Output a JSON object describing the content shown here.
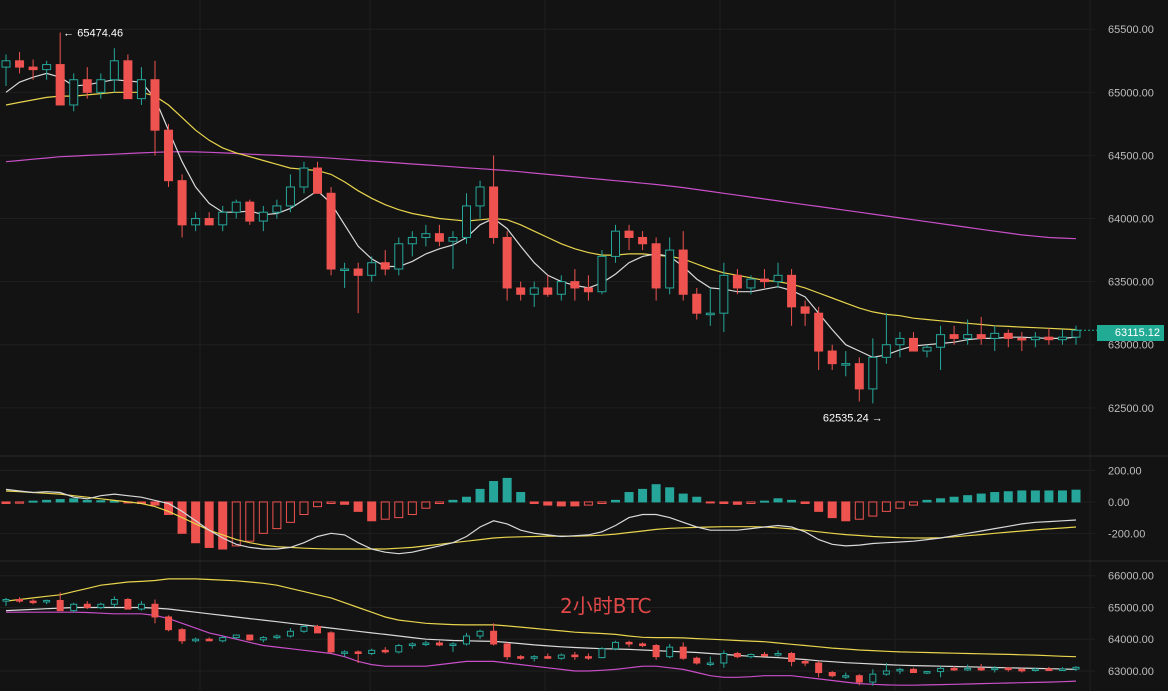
{
  "chart_data": [
    {
      "type": "candlestick",
      "title": "",
      "axis_ticks": [
        "65500.00",
        "65000.00",
        "64500.00",
        "64000.00",
        "63500.00",
        "63000.00",
        "62500.00"
      ],
      "ylim": [
        62150,
        65700
      ],
      "last_price": "63115.12",
      "annotations": {
        "high": "65474.46",
        "low": "62535.24"
      },
      "colors": {
        "up": "#26a69a",
        "down": "#ef5350",
        "ma_fast": "#d9d9d9",
        "ma_mid": "#e8d44d",
        "ma_slow": "#c84fc8",
        "tag": "#22ab94"
      },
      "candles": [
        [
          65200,
          65300,
          65050,
          65250
        ],
        [
          65250,
          65320,
          65150,
          65200
        ],
        [
          65200,
          65260,
          65100,
          65180
        ],
        [
          65180,
          65250,
          65100,
          65220
        ],
        [
          65220,
          65474,
          64900,
          64900
        ],
        [
          64900,
          65150,
          64850,
          65100
        ],
        [
          65100,
          65200,
          64950,
          65000
        ],
        [
          65000,
          65150,
          64950,
          65100
        ],
        [
          65100,
          65350,
          65000,
          65250
        ],
        [
          65250,
          65300,
          64950,
          64950
        ],
        [
          64950,
          65200,
          64900,
          65100
        ],
        [
          65100,
          65250,
          64500,
          64700
        ],
        [
          64700,
          64750,
          64250,
          64300
        ],
        [
          64300,
          64350,
          63850,
          63950
        ],
        [
          63950,
          64050,
          63900,
          64000
        ],
        [
          64000,
          64050,
          63950,
          63950
        ],
        [
          63950,
          64100,
          63900,
          64050
        ],
        [
          64050,
          64150,
          64000,
          64130
        ],
        [
          64130,
          64150,
          63950,
          63980
        ],
        [
          63980,
          64100,
          63900,
          64050
        ],
        [
          64050,
          64150,
          64000,
          64100
        ],
        [
          64100,
          64350,
          64050,
          64250
        ],
        [
          64250,
          64450,
          64200,
          64400
        ],
        [
          64400,
          64450,
          64200,
          64200
        ],
        [
          64200,
          64250,
          63550,
          63600
        ],
        [
          63600,
          63650,
          63450,
          63600
        ],
        [
          63600,
          63650,
          63250,
          63550
        ],
        [
          63550,
          63700,
          63500,
          63650
        ],
        [
          63650,
          63750,
          63550,
          63600
        ],
        [
          63600,
          63850,
          63550,
          63800
        ],
        [
          63800,
          63900,
          63700,
          63850
        ],
        [
          63850,
          63950,
          63780,
          63880
        ],
        [
          63880,
          63950,
          63780,
          63820
        ],
        [
          63820,
          63900,
          63600,
          63850
        ],
        [
          63850,
          64200,
          63800,
          64100
        ],
        [
          64100,
          64300,
          64000,
          64250
        ],
        [
          64250,
          64500,
          63800,
          63850
        ],
        [
          63850,
          63900,
          63350,
          63450
        ],
        [
          63450,
          63500,
          63350,
          63400
        ],
        [
          63400,
          63500,
          63300,
          63450
        ],
        [
          63450,
          63550,
          63380,
          63400
        ],
        [
          63400,
          63550,
          63350,
          63500
        ],
        [
          63500,
          63600,
          63350,
          63450
        ],
        [
          63450,
          63550,
          63350,
          63420
        ],
        [
          63420,
          63750,
          63400,
          63700
        ],
        [
          63700,
          63950,
          63650,
          63900
        ],
        [
          63900,
          63950,
          63750,
          63850
        ],
        [
          63850,
          63900,
          63750,
          63800
        ],
        [
          63800,
          63850,
          63350,
          63450
        ],
        [
          63450,
          63850,
          63400,
          63750
        ],
        [
          63750,
          63900,
          63350,
          63400
        ],
        [
          63400,
          63450,
          63200,
          63250
        ],
        [
          63250,
          63450,
          63150,
          63250
        ],
        [
          63250,
          63650,
          63100,
          63550
        ],
        [
          63550,
          63600,
          63400,
          63450
        ],
        [
          63450,
          63550,
          63400,
          63520
        ],
        [
          63520,
          63600,
          63450,
          63500
        ],
        [
          63500,
          63650,
          63450,
          63550
        ],
        [
          63550,
          63600,
          63150,
          63300
        ],
        [
          63300,
          63350,
          63150,
          63250
        ],
        [
          63250,
          63300,
          62800,
          62950
        ],
        [
          62950,
          63000,
          62800,
          62850
        ],
        [
          62850,
          62950,
          62750,
          62850
        ],
        [
          62850,
          62900,
          62550,
          62650
        ],
        [
          62650,
          63050,
          62535,
          62900
        ],
        [
          62900,
          63250,
          62850,
          63000
        ],
        [
          63000,
          63100,
          62900,
          63050
        ],
        [
          63050,
          63100,
          62950,
          62950
        ],
        [
          62950,
          63000,
          62900,
          62980
        ],
        [
          62980,
          63150,
          62800,
          63080
        ],
        [
          63080,
          63150,
          63000,
          63050
        ],
        [
          63050,
          63200,
          63000,
          63080
        ],
        [
          63080,
          63220,
          63000,
          63050
        ],
        [
          63050,
          63150,
          62950,
          63090
        ],
        [
          63090,
          63120,
          62980,
          63050
        ],
        [
          63050,
          63100,
          62950,
          63040
        ],
        [
          63040,
          63100,
          62980,
          63060
        ],
        [
          63060,
          63130,
          63000,
          63040
        ],
        [
          63040,
          63120,
          63000,
          63060
        ],
        [
          63060,
          63150,
          63000,
          63115
        ]
      ],
      "ma_fast": [
        65000,
        65080,
        65120,
        65150,
        65120,
        65050,
        65060,
        65080,
        65100,
        65090,
        65080,
        64950,
        64700,
        64450,
        64250,
        64120,
        64050,
        64050,
        64060,
        64030,
        64040,
        64080,
        64150,
        64220,
        64120,
        63950,
        63780,
        63680,
        63620,
        63620,
        63660,
        63720,
        63760,
        63790,
        63850,
        63950,
        64000,
        63920,
        63780,
        63650,
        63550,
        63500,
        63470,
        63450,
        63490,
        63560,
        63650,
        63700,
        63720,
        63700,
        63620,
        63520,
        63450,
        63440,
        63420,
        63420,
        63440,
        63460,
        63430,
        63380,
        63250,
        63120,
        63000,
        62950,
        62900,
        62920,
        62960,
        62990,
        63000,
        63010,
        63020,
        63040,
        63050,
        63050,
        63060,
        63060,
        63055,
        63050,
        63050,
        63060
      ],
      "ma_mid": [
        64900,
        64920,
        64940,
        64960,
        64970,
        64970,
        64980,
        64990,
        65000,
        65000,
        65000,
        64970,
        64900,
        64800,
        64700,
        64620,
        64560,
        64520,
        64490,
        64460,
        64430,
        64400,
        64390,
        64380,
        64350,
        64290,
        64220,
        64160,
        64110,
        64070,
        64040,
        64020,
        64000,
        63990,
        63980,
        63990,
        64000,
        63990,
        63950,
        63900,
        63850,
        63800,
        63760,
        63730,
        63710,
        63710,
        63720,
        63720,
        63710,
        63700,
        63680,
        63640,
        63600,
        63570,
        63550,
        63530,
        63510,
        63500,
        63480,
        63450,
        63410,
        63370,
        63330,
        63290,
        63260,
        63240,
        63230,
        63210,
        63200,
        63190,
        63180,
        63170,
        63160,
        63150,
        63145,
        63140,
        63135,
        63130,
        63125,
        63120
      ],
      "ma_slow": [
        64450,
        64460,
        64470,
        64480,
        64490,
        64495,
        64500,
        64505,
        64510,
        64515,
        64520,
        64525,
        64528,
        64530,
        64528,
        64525,
        64520,
        64515,
        64510,
        64505,
        64500,
        64495,
        64490,
        64485,
        64478,
        64470,
        64462,
        64455,
        64448,
        64440,
        64432,
        64425,
        64418,
        64410,
        64402,
        64395,
        64388,
        64380,
        64370,
        64360,
        64350,
        64340,
        64330,
        64320,
        64310,
        64300,
        64290,
        64280,
        64270,
        64258,
        64245,
        64230,
        64215,
        64200,
        64185,
        64170,
        64155,
        64140,
        64125,
        64110,
        64095,
        64080,
        64065,
        64050,
        64035,
        64020,
        64005,
        63990,
        63975,
        63960,
        63945,
        63930,
        63915,
        63900,
        63885,
        63870,
        63860,
        63850,
        63845,
        63840
      ]
    },
    {
      "type": "histogram",
      "title": "",
      "axis_ticks": [
        "200.00",
        "0.00",
        "-200.00"
      ],
      "ylim": [
        -370,
        280
      ],
      "values": [
        -10,
        -8,
        5,
        10,
        15,
        20,
        10,
        8,
        5,
        -5,
        -10,
        -20,
        -80,
        -200,
        -260,
        -290,
        -300,
        -280,
        -250,
        -200,
        -170,
        -130,
        -80,
        -30,
        -10,
        -15,
        -60,
        -120,
        -110,
        -100,
        -80,
        -40,
        -10,
        10,
        30,
        80,
        130,
        150,
        60,
        -10,
        -20,
        -25,
        -25,
        -20,
        -10,
        10,
        60,
        80,
        110,
        90,
        50,
        30,
        -5,
        -10,
        -15,
        -10,
        5,
        20,
        10,
        -10,
        -60,
        -100,
        -120,
        -110,
        -90,
        -60,
        -40,
        -20,
        10,
        20,
        30,
        40,
        50,
        60,
        65,
        70,
        70,
        70,
        70,
        75
      ],
      "line_a": [
        80,
        70,
        60,
        65,
        60,
        30,
        20,
        40,
        50,
        40,
        30,
        10,
        -10,
        -60,
        -120,
        -180,
        -230,
        -270,
        -290,
        -300,
        -300,
        -290,
        -260,
        -220,
        -200,
        -210,
        -260,
        -300,
        -320,
        -330,
        -320,
        -300,
        -280,
        -260,
        -220,
        -160,
        -120,
        -140,
        -180,
        -200,
        -210,
        -220,
        -215,
        -210,
        -190,
        -150,
        -100,
        -80,
        -80,
        -100,
        -130,
        -160,
        -180,
        -180,
        -180,
        -170,
        -160,
        -150,
        -160,
        -190,
        -240,
        -270,
        -280,
        -275,
        -265,
        -260,
        -255,
        -250,
        -240,
        -230,
        -215,
        -200,
        -185,
        -170,
        -155,
        -140,
        -130,
        -125,
        -120,
        -115
      ],
      "line_b": [
        70,
        65,
        60,
        55,
        50,
        40,
        30,
        20,
        10,
        0,
        -10,
        -30,
        -60,
        -100,
        -140,
        -180,
        -210,
        -240,
        -260,
        -275,
        -285,
        -290,
        -295,
        -298,
        -300,
        -300,
        -300,
        -300,
        -300,
        -295,
        -290,
        -280,
        -270,
        -260,
        -250,
        -240,
        -230,
        -225,
        -222,
        -220,
        -218,
        -218,
        -218,
        -216,
        -212,
        -205,
        -195,
        -185,
        -175,
        -168,
        -165,
        -162,
        -160,
        -158,
        -158,
        -158,
        -160,
        -165,
        -172,
        -180,
        -190,
        -200,
        -208,
        -214,
        -220,
        -224,
        -228,
        -230,
        -230,
        -228,
        -222,
        -215,
        -208,
        -200,
        -192,
        -185,
        -178,
        -172,
        -166,
        -160
      ]
    },
    {
      "type": "line",
      "title": "2小时BTC",
      "axis_ticks": [
        "66000.00",
        "65000.00",
        "64000.00",
        "63000.00"
      ],
      "ylim": [
        62400,
        66400
      ],
      "note": "candlestick mini-panel with three bands; reuses candles of the main panel",
      "upper": [
        65200,
        65250,
        65300,
        65350,
        65400,
        65500,
        65600,
        65700,
        65750,
        65800,
        65820,
        65850,
        65900,
        65900,
        65900,
        65880,
        65860,
        65840,
        65800,
        65760,
        65700,
        65600,
        65500,
        65400,
        65300,
        65150,
        65000,
        64850,
        64700,
        64600,
        64550,
        64500,
        64480,
        64460,
        64450,
        64450,
        64450,
        64420,
        64380,
        64340,
        64300,
        64260,
        64220,
        64200,
        64180,
        64150,
        64100,
        64060,
        64050,
        64050,
        64040,
        64020,
        64000,
        63980,
        63960,
        63940,
        63920,
        63880,
        63840,
        63800,
        63760,
        63720,
        63690,
        63660,
        63640,
        63620,
        63600,
        63590,
        63580,
        63570,
        63560,
        63550,
        63540,
        63530,
        63520,
        63510,
        63500,
        63480,
        63460,
        63450
      ],
      "middle": [
        64900,
        64920,
        64940,
        64960,
        64980,
        65000,
        65000,
        65000,
        65000,
        65000,
        65000,
        64980,
        64950,
        64900,
        64850,
        64800,
        64750,
        64700,
        64650,
        64600,
        64550,
        64500,
        64450,
        64400,
        64350,
        64300,
        64250,
        64200,
        64150,
        64100,
        64050,
        64000,
        63980,
        63960,
        63950,
        63940,
        63930,
        63900,
        63860,
        63820,
        63790,
        63760,
        63740,
        63720,
        63700,
        63690,
        63680,
        63660,
        63640,
        63620,
        63600,
        63580,
        63550,
        63520,
        63490,
        63460,
        63440,
        63420,
        63390,
        63360,
        63320,
        63290,
        63260,
        63240,
        63220,
        63200,
        63180,
        63170,
        63160,
        63150,
        63140,
        63130,
        63120,
        63110,
        63100,
        63090,
        63080,
        63070,
        63060,
        63050
      ],
      "lower": [
        64850,
        64850,
        64850,
        64850,
        64850,
        64850,
        64840,
        64820,
        64800,
        64800,
        64800,
        64750,
        64650,
        64500,
        64350,
        64200,
        64100,
        64000,
        63900,
        63800,
        63750,
        63700,
        63650,
        63600,
        63550,
        63450,
        63300,
        63200,
        63150,
        63150,
        63150,
        63150,
        63200,
        63250,
        63300,
        63300,
        63300,
        63250,
        63200,
        63150,
        63100,
        63050,
        63000,
        63000,
        63020,
        63050,
        63100,
        63150,
        63150,
        63100,
        63050,
        62950,
        62850,
        62800,
        62800,
        62820,
        62850,
        62850,
        62850,
        62800,
        62750,
        62700,
        62650,
        62600,
        62580,
        62560,
        62550,
        62550,
        62560,
        62570,
        62580,
        62590,
        62600,
        62610,
        62620,
        62630,
        62640,
        62650,
        62660,
        62680
      ]
    }
  ]
}
